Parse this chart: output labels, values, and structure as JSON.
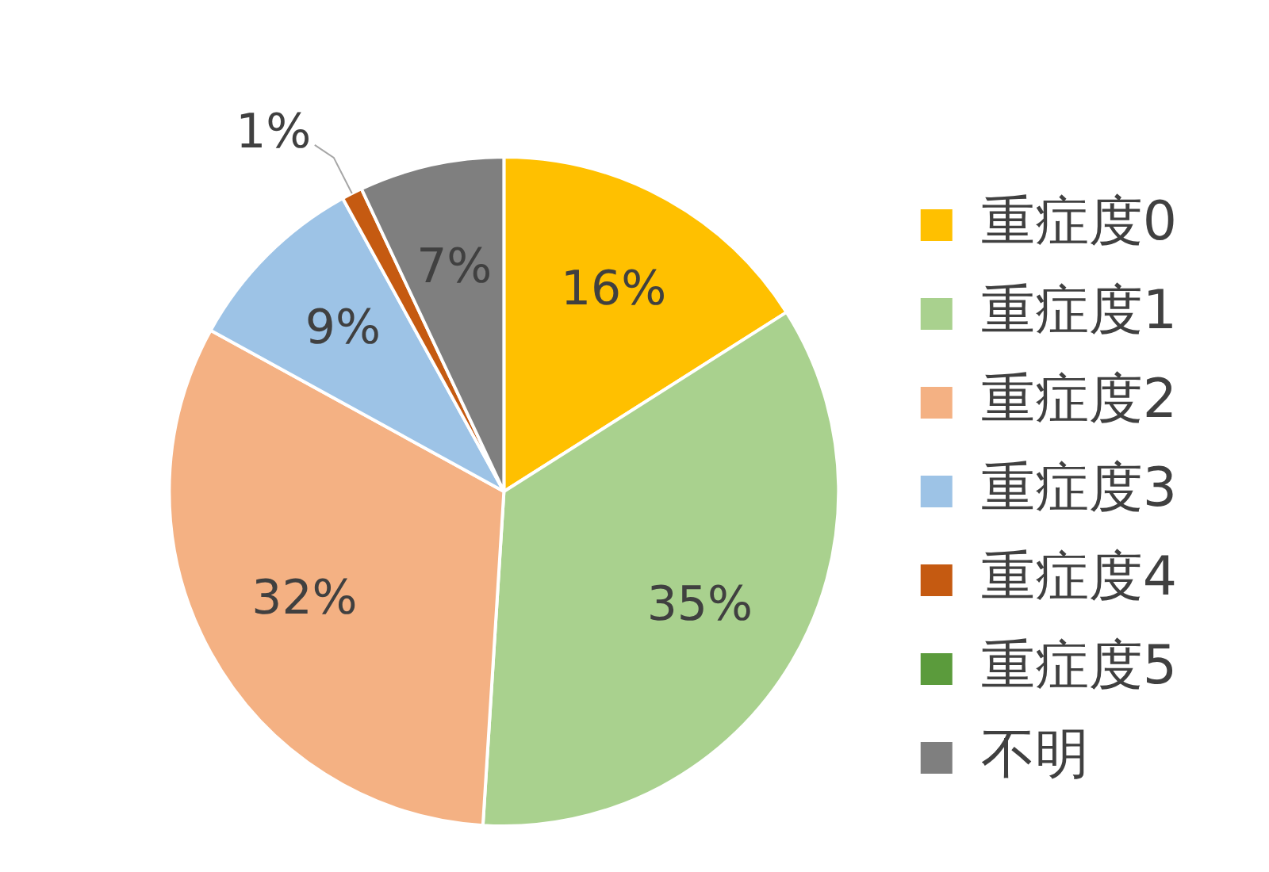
{
  "chart_data": {
    "type": "pie",
    "categories": [
      "重症度0",
      "重症度1",
      "重症度2",
      "重症度3",
      "重症度4",
      "重症度5",
      "不明"
    ],
    "values": [
      16,
      35,
      32,
      9,
      1,
      0,
      7
    ],
    "colors": [
      "#ffc000",
      "#a9d18e",
      "#f4b183",
      "#9dc3e6",
      "#c55a11",
      "#5b9b3c",
      "#7f7f7f"
    ],
    "value_labels": [
      "16%",
      "35%",
      "32%",
      "9%",
      "1%",
      null,
      "7%"
    ],
    "legend": "right"
  }
}
